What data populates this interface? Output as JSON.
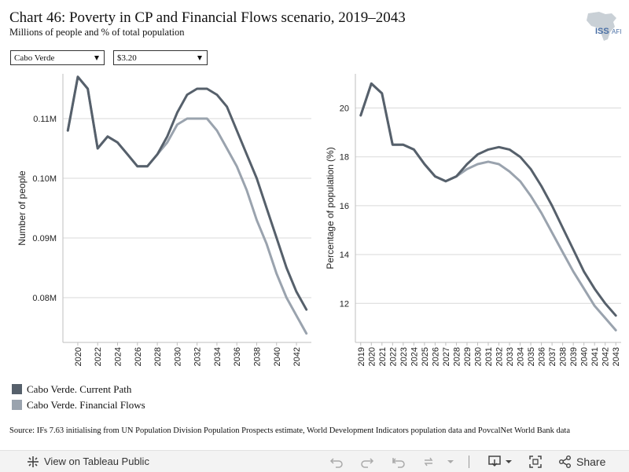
{
  "header": {
    "title": "Chart 46: Poverty in CP and Financial Flows scenario, 2019–2043",
    "subtitle": "Millions of people and % of total population"
  },
  "logo": {
    "text": "ISS",
    "suffix": "AFI",
    "icon": "africa-map-icon"
  },
  "filters": {
    "country": "Cabo Verde",
    "threshold": "$3.20"
  },
  "legend": [
    {
      "label": "Cabo Verde. Current Path",
      "color": "#56606b"
    },
    {
      "label": "Cabo Verde. Financial Flows",
      "color": "#9aa3ae"
    }
  ],
  "source": "Source: IFs 7.63 initialising from UN Population Division Population Prospects estimate, World Development Indicators population data and PovcalNet World Bank data",
  "footer": {
    "view_label": "View on Tableau Public",
    "share_label": "Share"
  },
  "chart_data": [
    {
      "type": "line",
      "ylabel": "Number of people",
      "xlabel": "",
      "ylim": [
        0.0725,
        0.1175
      ],
      "xlim": [
        2018.5,
        2043.5
      ],
      "yticks": [
        0.08,
        0.09,
        0.1,
        0.11
      ],
      "ytick_labels": [
        "0.08M",
        "0.09M",
        "0.10M",
        "0.11M"
      ],
      "xticks": [
        2020,
        2022,
        2024,
        2026,
        2028,
        2030,
        2032,
        2034,
        2036,
        2038,
        2040,
        2042
      ],
      "xtick_labels": [
        "2020",
        "2022",
        "2024",
        "2026",
        "2028",
        "2030",
        "2032",
        "2034",
        "2036",
        "2038",
        "2040",
        "2042"
      ],
      "grid": true,
      "x": [
        2019,
        2020,
        2021,
        2022,
        2023,
        2024,
        2025,
        2026,
        2027,
        2028,
        2029,
        2030,
        2031,
        2032,
        2033,
        2034,
        2035,
        2036,
        2037,
        2038,
        2039,
        2040,
        2041,
        2042,
        2043
      ],
      "series": [
        {
          "name": "Cabo Verde. Current Path",
          "color": "#56606b",
          "values": [
            0.108,
            0.117,
            0.115,
            0.105,
            0.107,
            0.106,
            0.104,
            0.102,
            0.102,
            0.104,
            0.107,
            0.111,
            0.114,
            0.115,
            0.115,
            0.114,
            0.112,
            0.108,
            0.104,
            0.1,
            0.095,
            0.09,
            0.085,
            0.081,
            0.078
          ]
        },
        {
          "name": "Cabo Verde. Financial Flows",
          "color": "#9aa3ae",
          "values": [
            0.108,
            0.117,
            0.115,
            0.105,
            0.107,
            0.106,
            0.104,
            0.102,
            0.102,
            0.104,
            0.106,
            0.109,
            0.11,
            0.11,
            0.11,
            0.108,
            0.105,
            0.102,
            0.098,
            0.093,
            0.089,
            0.084,
            0.08,
            0.077,
            0.074
          ]
        }
      ]
    },
    {
      "type": "line",
      "ylabel": "Percentage of population (%)",
      "xlabel": "",
      "ylim": [
        10.4,
        21.4
      ],
      "xlim": [
        2018.5,
        2043.5
      ],
      "yticks": [
        12,
        14,
        16,
        18,
        20
      ],
      "ytick_labels": [
        "12",
        "14",
        "16",
        "18",
        "20"
      ],
      "xticks": [
        2019,
        2020,
        2021,
        2022,
        2023,
        2024,
        2025,
        2026,
        2027,
        2028,
        2029,
        2030,
        2031,
        2032,
        2033,
        2034,
        2035,
        2036,
        2037,
        2038,
        2039,
        2040,
        2041,
        2042,
        2043
      ],
      "xtick_labels": [
        "2019",
        "2020",
        "2021",
        "2022",
        "2023",
        "2024",
        "2025",
        "2026",
        "2027",
        "2028",
        "2029",
        "2030",
        "2031",
        "2032",
        "2033",
        "2034",
        "2035",
        "2036",
        "2037",
        "2038",
        "2039",
        "2040",
        "2041",
        "2042",
        "2043"
      ],
      "grid": true,
      "x": [
        2019,
        2020,
        2021,
        2022,
        2023,
        2024,
        2025,
        2026,
        2027,
        2028,
        2029,
        2030,
        2031,
        2032,
        2033,
        2034,
        2035,
        2036,
        2037,
        2038,
        2039,
        2040,
        2041,
        2042,
        2043
      ],
      "series": [
        {
          "name": "Cabo Verde. Current Path",
          "color": "#56606b",
          "values": [
            19.7,
            21.0,
            20.6,
            18.5,
            18.5,
            18.3,
            17.7,
            17.2,
            17.0,
            17.2,
            17.7,
            18.1,
            18.3,
            18.4,
            18.3,
            18.0,
            17.5,
            16.8,
            16.0,
            15.1,
            14.2,
            13.3,
            12.6,
            12.0,
            11.5
          ]
        },
        {
          "name": "Cabo Verde. Financial Flows",
          "color": "#9aa3ae",
          "values": [
            19.7,
            21.0,
            20.6,
            18.5,
            18.5,
            18.3,
            17.7,
            17.2,
            17.0,
            17.2,
            17.5,
            17.7,
            17.8,
            17.7,
            17.4,
            17.0,
            16.4,
            15.7,
            14.9,
            14.1,
            13.3,
            12.6,
            11.9,
            11.4,
            10.9
          ]
        }
      ]
    }
  ]
}
